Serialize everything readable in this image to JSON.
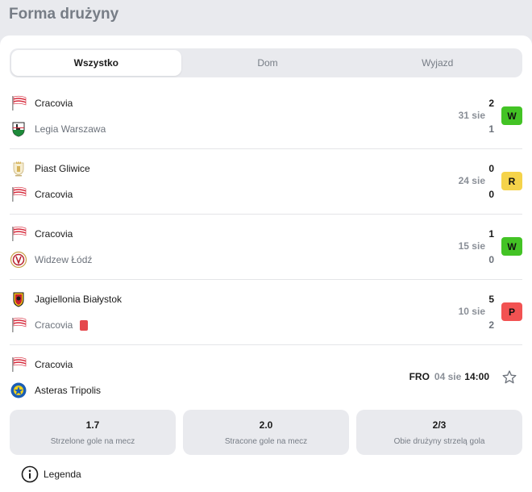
{
  "header": {
    "title": "Forma drużyny"
  },
  "tabs": [
    {
      "label": "Wszystko",
      "active": true
    },
    {
      "label": "Dom",
      "active": false
    },
    {
      "label": "Wyjazd",
      "active": false
    }
  ],
  "matches": [
    {
      "home": "Cracovia",
      "away": "Legia Warszawa",
      "home_score": "2",
      "away_score": "1",
      "date": "31 sie",
      "result": "W",
      "result_color": "#43c325"
    },
    {
      "home": "Piast Gliwice",
      "away": "Cracovia",
      "home_score": "0",
      "away_score": "0",
      "date": "24 sie",
      "result": "R",
      "result_color": "#f5d34a"
    },
    {
      "home": "Cracovia",
      "away": "Widzew Łódź",
      "home_score": "1",
      "away_score": "0",
      "date": "15 sie",
      "result": "W",
      "result_color": "#43c325"
    },
    {
      "home": "Jagiellonia Białystok",
      "away": "Cracovia",
      "home_score": "5",
      "away_score": "2",
      "date": "10 sie",
      "result": "P",
      "result_color": "#f25252"
    }
  ],
  "upcoming": {
    "home": "Cracovia",
    "away": "Asteras Tripolis",
    "competition": "FRO",
    "date": "04 sie",
    "time": "14:00"
  },
  "stats": [
    {
      "value": "1.7",
      "label": "Strzelone gole na mecz"
    },
    {
      "value": "2.0",
      "label": "Stracone gole na mecz"
    },
    {
      "value": "2/3",
      "label": "Obie drużyny strzelą gola"
    }
  ],
  "legend": {
    "label": "Legenda"
  }
}
